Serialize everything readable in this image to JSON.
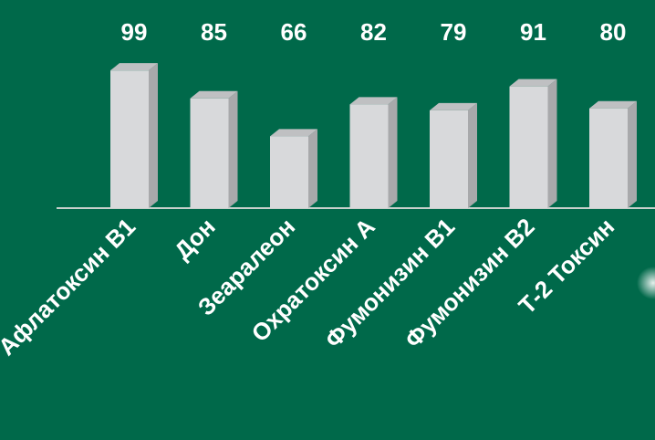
{
  "chart_data": {
    "type": "bar",
    "categories": [
      "Афлатоксин В1",
      "Дон",
      "Зеаралеон",
      "Охратоксин А",
      "Фумонизин В1",
      "Фумонизин В2",
      "Т-2 Токсин"
    ],
    "values": [
      99,
      85,
      66,
      82,
      79,
      91,
      80
    ],
    "color": "#d8d9db",
    "ylim": [
      30,
      100
    ]
  }
}
